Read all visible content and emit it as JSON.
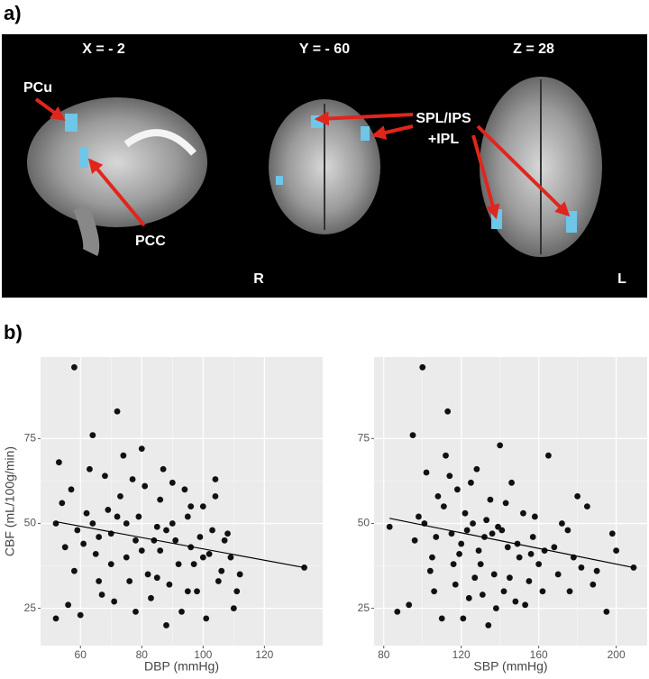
{
  "panel_labels": [
    "a)",
    "b)"
  ],
  "brain_panel": {
    "slice_labels": [
      "X = - 2",
      "Y = - 60",
      "Z = 28"
    ],
    "regions": {
      "pcu": "PCu",
      "pcc": "PCC",
      "spl": [
        "SPL/IPS",
        "+IPL"
      ]
    },
    "orientation": {
      "right": "R",
      "left": "L"
    }
  },
  "chart_data": [
    {
      "type": "scatter",
      "x_label": "DBP (mmHg)",
      "y_label": "CBF (mL/100g/min)",
      "x": [
        58,
        72,
        52,
        53,
        55,
        57,
        60,
        62,
        64,
        66,
        68,
        70,
        71,
        73,
        75,
        77,
        79,
        80,
        82,
        84,
        86,
        88,
        90,
        92,
        94,
        96,
        98,
        100,
        102,
        104,
        106,
        108,
        110,
        112,
        133,
        54,
        56,
        59,
        63,
        65,
        67,
        69,
        74,
        76,
        78,
        81,
        83,
        85,
        87,
        89,
        91,
        93,
        95,
        97,
        99,
        101,
        103,
        105,
        107,
        109,
        111,
        61,
        70,
        75,
        80,
        85,
        90,
        95,
        100,
        64,
        72,
        86,
        104,
        52,
        58,
        66,
        78,
        88,
        96
      ],
      "y": [
        96,
        83,
        22,
        68,
        43,
        60,
        23,
        53,
        76,
        33,
        64,
        47,
        27,
        58,
        40,
        63,
        52,
        72,
        35,
        45,
        57,
        20,
        50,
        38,
        60,
        43,
        30,
        55,
        41,
        63,
        36,
        47,
        25,
        35,
        37,
        56,
        26,
        48,
        66,
        41,
        29,
        54,
        70,
        33,
        45,
        61,
        28,
        49,
        66,
        32,
        45,
        24,
        52,
        38,
        46,
        22,
        48,
        33,
        45,
        40,
        30,
        44,
        38,
        50,
        42,
        34,
        62,
        30,
        40,
        50,
        52,
        42,
        58,
        50,
        36,
        46,
        24,
        48,
        55
      ],
      "color": "#111111",
      "trend_line": {
        "x": [
          52,
          133
        ],
        "y": [
          50.5,
          37
        ]
      },
      "xlim": [
        47,
        139
      ],
      "xticks": [
        60,
        80,
        100,
        120
      ],
      "ylim": [
        14,
        99
      ],
      "yticks": [
        25,
        50,
        75
      ],
      "grid": true
    },
    {
      "type": "scatter",
      "x_label": "SBP (mmHg)",
      "x": [
        100,
        113,
        209,
        83,
        87,
        93,
        95,
        98,
        102,
        105,
        108,
        110,
        112,
        115,
        117,
        118,
        120,
        122,
        124,
        126,
        128,
        130,
        132,
        134,
        135,
        137,
        139,
        140,
        142,
        144,
        146,
        148,
        150,
        152,
        155,
        157,
        160,
        162,
        165,
        168,
        170,
        175,
        178,
        180,
        182,
        185,
        190,
        195,
        200,
        96,
        101,
        106,
        111,
        116,
        121,
        125,
        129,
        133,
        138,
        141,
        145,
        149,
        153,
        158,
        163,
        172,
        188,
        198,
        107,
        114,
        119,
        127,
        136,
        143,
        156,
        176,
        104,
        131,
        123
      ],
      "y": [
        96,
        83,
        37,
        49,
        24,
        26,
        76,
        52,
        65,
        40,
        58,
        22,
        70,
        47,
        32,
        60,
        44,
        53,
        28,
        50,
        66,
        38,
        46,
        20,
        57,
        35,
        49,
        73,
        30,
        43,
        62,
        27,
        40,
        53,
        33,
        46,
        38,
        30,
        70,
        43,
        35,
        48,
        40,
        58,
        37,
        55,
        36,
        24,
        42,
        45,
        50,
        30,
        55,
        38,
        22,
        62,
        42,
        51,
        25,
        48,
        34,
        44,
        26,
        52,
        42,
        50,
        32,
        47,
        46,
        64,
        41,
        34,
        47,
        56,
        41,
        30,
        36,
        29,
        48
      ],
      "color": "#111111",
      "trend_line": {
        "x": [
          83,
          209
        ],
        "y": [
          51.5,
          37
        ]
      },
      "xlim": [
        75,
        216
      ],
      "xticks": [
        80,
        120,
        160,
        200
      ],
      "ylim": [
        14,
        99
      ],
      "yticks": [
        25,
        50,
        75
      ],
      "grid": true
    }
  ]
}
